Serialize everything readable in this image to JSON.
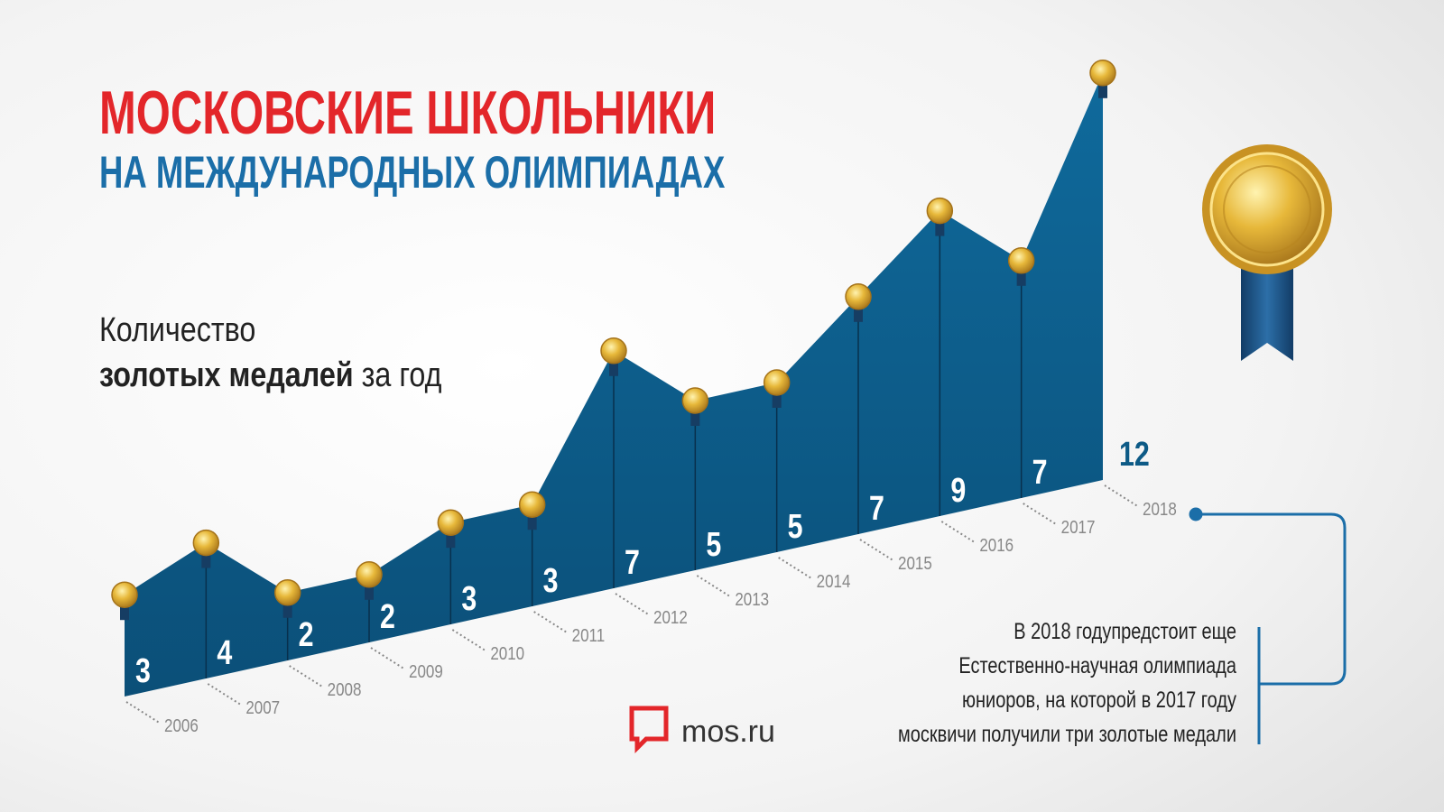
{
  "chart_data": {
    "type": "area",
    "title": "МОСКОВСКИЕ ШКОЛЬНИКИ",
    "subtitle": "НА МЕЖДУНАРОДНЫХ ОЛИМПИАДАХ",
    "ylabel": {
      "line1": "Количество",
      "bold": "золотых медалей",
      "rest": "за год"
    },
    "categories": [
      "2006",
      "2007",
      "2008",
      "2009",
      "2010",
      "2011",
      "2012",
      "2013",
      "2014",
      "2015",
      "2016",
      "2017",
      "2018"
    ],
    "values": [
      3,
      4,
      2,
      2,
      3,
      3,
      7,
      5,
      5,
      7,
      9,
      7,
      12
    ],
    "color": "#0d5a86",
    "annotation": [
      "В 2018 годупредстоит еще",
      "Естественно-научная олимпиада",
      "юниоров, на которой в 2017 году",
      "москвичи получили три золотые медали"
    ]
  },
  "logo": "mos.ru"
}
